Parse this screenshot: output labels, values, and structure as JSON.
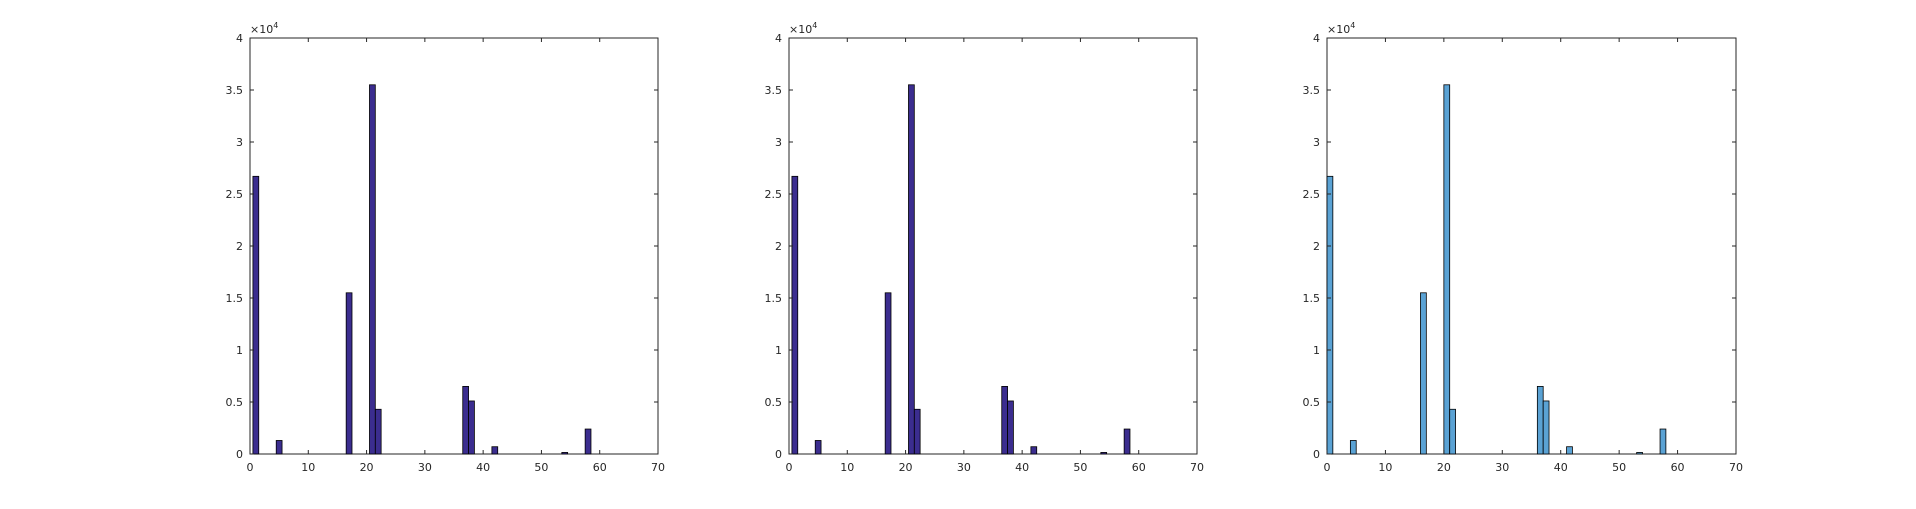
{
  "chart_data": [
    {
      "type": "bar",
      "title": "",
      "xlabel": "",
      "ylabel": "",
      "xlim": [
        0,
        70
      ],
      "ylim": [
        0,
        40000
      ],
      "xticks": [
        0,
        10,
        20,
        30,
        40,
        50,
        60,
        70
      ],
      "yticks": [
        0,
        5000,
        10000,
        15000,
        20000,
        25000,
        30000,
        35000,
        40000
      ],
      "ytick_labels": [
        "0",
        "0.5",
        "1",
        "1.5",
        "2",
        "2.5",
        "3",
        "3.5",
        "4"
      ],
      "y_exponent": {
        "base": "×10",
        "power": "4"
      },
      "grid": false,
      "bar_width": 1,
      "bar_color": "#3b2d8f",
      "x": [
        1,
        5,
        17,
        21,
        22,
        37,
        38,
        42,
        54,
        58
      ],
      "values": [
        26700,
        1300,
        15500,
        35500,
        4300,
        6500,
        5100,
        700,
        150,
        2400
      ]
    },
    {
      "type": "bar",
      "title": "",
      "xlabel": "",
      "ylabel": "",
      "xlim": [
        0,
        70
      ],
      "ylim": [
        0,
        40000
      ],
      "xticks": [
        0,
        10,
        20,
        30,
        40,
        50,
        60,
        70
      ],
      "yticks": [
        0,
        5000,
        10000,
        15000,
        20000,
        25000,
        30000,
        35000,
        40000
      ],
      "ytick_labels": [
        "0",
        "0.5",
        "1",
        "1.5",
        "2",
        "2.5",
        "3",
        "3.5",
        "4"
      ],
      "y_exponent": {
        "base": "×10",
        "power": "4"
      },
      "grid": false,
      "bar_width": 1,
      "bar_color": "#3b2d8f",
      "x": [
        1,
        5,
        17,
        21,
        22,
        37,
        38,
        42,
        54,
        58
      ],
      "values": [
        26700,
        1300,
        15500,
        35500,
        4300,
        6500,
        5100,
        700,
        150,
        2400
      ]
    },
    {
      "type": "bar",
      "title": "",
      "xlabel": "",
      "ylabel": "",
      "xlim": [
        0,
        70
      ],
      "ylim": [
        0,
        40000
      ],
      "xticks": [
        0,
        10,
        20,
        30,
        40,
        50,
        60,
        70
      ],
      "yticks": [
        0,
        5000,
        10000,
        15000,
        20000,
        25000,
        30000,
        35000,
        40000
      ],
      "ytick_labels": [
        "0",
        "0.5",
        "1",
        "1.5",
        "2",
        "2.5",
        "3",
        "3.5",
        "4"
      ],
      "y_exponent": {
        "base": "×10",
        "power": "4"
      },
      "grid": false,
      "bar_width": 1,
      "bar_color": "#5aa2d4",
      "x": [
        0.5,
        4.5,
        16.5,
        20.5,
        21.5,
        36.5,
        37.5,
        41.5,
        53.5,
        57.5
      ],
      "values": [
        26700,
        1300,
        15500,
        35500,
        4300,
        6500,
        5100,
        700,
        150,
        2400
      ]
    }
  ]
}
